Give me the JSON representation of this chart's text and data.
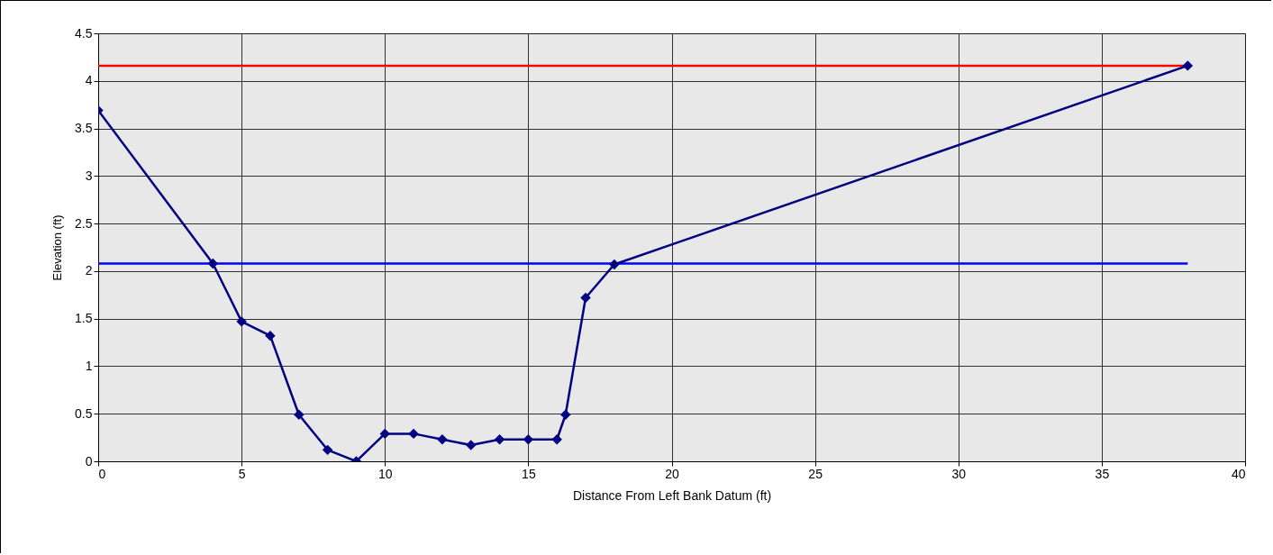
{
  "chart_data": {
    "type": "line",
    "xlabel": "Distance From Left Bank Datum  (ft)",
    "ylabel": "Elevation (ft)",
    "xlim": [
      0,
      40
    ],
    "xticks": [
      0,
      5,
      10,
      15,
      20,
      25,
      30,
      35,
      40
    ],
    "ylim": [
      0,
      4.5
    ],
    "yticks": [
      0,
      0.5,
      1,
      1.5,
      2,
      2.5,
      3,
      3.5,
      4,
      4.5
    ],
    "grid": true,
    "marker": "diamond",
    "series": [
      {
        "color": "#000080",
        "x": [
          0,
          4,
          5,
          6,
          7,
          8,
          9,
          10,
          11,
          12,
          13,
          14,
          15,
          16,
          16.3,
          17,
          18,
          38
        ],
        "values": [
          3.69,
          2.08,
          1.47,
          1.32,
          0.49,
          0.12,
          0,
          0.29,
          0.29,
          0.23,
          0.17,
          0.23,
          0.23,
          0.23,
          0.49,
          1.72,
          2.07,
          4.16
        ]
      },
      {
        "color": "#ff0000",
        "marker": "none",
        "x": [
          0,
          38
        ],
        "values": [
          4.16,
          4.16
        ]
      },
      {
        "color": "#0000ff",
        "marker": "none",
        "x": [
          0,
          38
        ],
        "values": [
          2.08,
          2.08
        ]
      }
    ]
  }
}
